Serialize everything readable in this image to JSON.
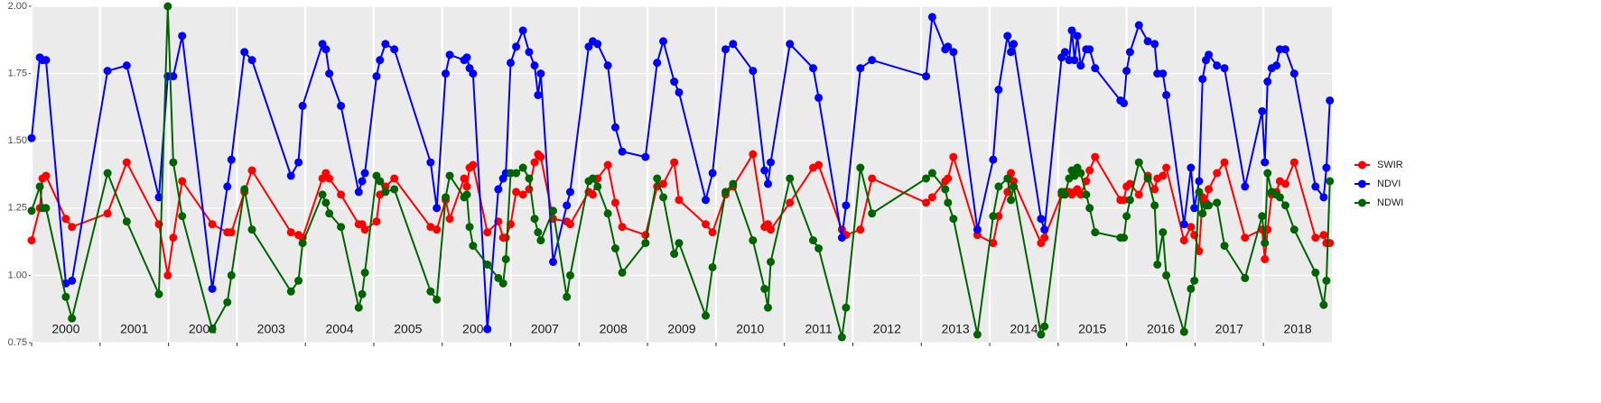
{
  "chart_data": {
    "type": "line",
    "x": [
      2000.0,
      2000.12,
      2000.16,
      2000.21,
      2000.5,
      2000.59,
      2001.11,
      2001.39,
      2001.86,
      2001.99,
      2002.07,
      2002.2,
      2002.64,
      2002.86,
      2002.92,
      2003.11,
      2003.22,
      2003.79,
      2003.9,
      2003.96,
      2004.25,
      2004.3,
      2004.35,
      2004.52,
      2004.78,
      2004.83,
      2004.87,
      2005.04,
      2005.09,
      2005.17,
      2005.3,
      2005.83,
      2005.92,
      2006.05,
      2006.11,
      2006.32,
      2006.36,
      2006.4,
      2006.45,
      2006.66,
      2006.82,
      2006.89,
      2006.93,
      2007.0,
      2007.08,
      2007.18,
      2007.27,
      2007.35,
      2007.4,
      2007.44,
      2007.62,
      2007.82,
      2007.87,
      2008.14,
      2008.2,
      2008.27,
      2008.42,
      2008.53,
      2008.63,
      2008.97,
      2009.14,
      2009.23,
      2009.39,
      2009.46,
      2009.85,
      2009.95,
      2010.14,
      2010.25,
      2010.54,
      2010.71,
      2010.76,
      2010.8,
      2011.08,
      2011.42,
      2011.5,
      2011.84,
      2011.9,
      2012.11,
      2012.28,
      2013.07,
      2013.16,
      2013.35,
      2013.39,
      2013.47,
      2013.82,
      2014.05,
      2014.13,
      2014.26,
      2014.31,
      2014.35,
      2014.75,
      2014.8,
      2015.05,
      2015.1,
      2015.16,
      2015.2,
      2015.24,
      2015.28,
      2015.33,
      2015.41,
      2015.46,
      2015.54,
      2015.91,
      2015.96,
      2016.0,
      2016.05,
      2016.18,
      2016.31,
      2016.41,
      2016.45,
      2016.53,
      2016.58,
      2016.84,
      2016.94,
      2016.99,
      2017.06,
      2017.11,
      2017.16,
      2017.2,
      2017.32,
      2017.43,
      2017.73,
      2017.98,
      2018.02,
      2018.06,
      2018.12,
      2018.19,
      2018.24,
      2018.32,
      2018.45,
      2018.76,
      2018.88,
      2018.92,
      2018.97
    ],
    "series": [
      {
        "name": "SWIR",
        "color": "#ff0000",
        "values": [
          1.13,
          1.25,
          1.36,
          1.37,
          1.21,
          1.18,
          1.23,
          1.42,
          1.19,
          1.0,
          1.14,
          1.35,
          1.19,
          1.16,
          1.16,
          1.31,
          1.39,
          1.16,
          1.15,
          1.14,
          1.36,
          1.38,
          1.36,
          1.3,
          1.19,
          1.19,
          1.17,
          1.2,
          1.3,
          1.33,
          1.36,
          1.18,
          1.17,
          1.28,
          1.21,
          1.36,
          1.33,
          1.4,
          1.41,
          1.16,
          1.2,
          1.14,
          1.14,
          1.19,
          1.31,
          1.3,
          1.32,
          1.42,
          1.45,
          1.44,
          1.21,
          1.2,
          1.19,
          1.31,
          1.3,
          1.36,
          1.41,
          1.27,
          1.18,
          1.15,
          1.33,
          1.34,
          1.42,
          1.28,
          1.19,
          1.16,
          1.3,
          1.33,
          1.45,
          1.18,
          1.19,
          1.17,
          1.27,
          1.4,
          1.41,
          1.17,
          1.15,
          1.17,
          1.36,
          1.27,
          1.29,
          1.35,
          1.36,
          1.44,
          1.15,
          1.12,
          1.22,
          1.31,
          1.38,
          1.35,
          1.12,
          1.14,
          1.3,
          1.31,
          1.31,
          1.3,
          1.31,
          1.32,
          1.3,
          1.35,
          1.39,
          1.44,
          1.28,
          1.28,
          1.33,
          1.34,
          1.3,
          1.37,
          1.32,
          1.36,
          1.37,
          1.4,
          1.13,
          1.18,
          1.15,
          1.09,
          1.29,
          1.27,
          1.32,
          1.38,
          1.42,
          1.14,
          1.17,
          1.06,
          1.17,
          1.3,
          1.31,
          1.35,
          1.34,
          1.42,
          1.14,
          1.15,
          1.12,
          1.12
        ]
      },
      {
        "name": "NDVI",
        "color": "#0000ff",
        "values": [
          1.51,
          1.81,
          1.8,
          1.8,
          0.97,
          0.98,
          1.76,
          1.78,
          1.29,
          1.74,
          1.74,
          1.89,
          0.95,
          1.33,
          1.43,
          1.83,
          1.8,
          1.37,
          1.42,
          1.63,
          1.86,
          1.84,
          1.75,
          1.63,
          1.31,
          1.35,
          1.38,
          1.74,
          1.8,
          1.86,
          1.84,
          1.42,
          1.25,
          1.75,
          1.82,
          1.8,
          1.81,
          1.77,
          1.75,
          0.8,
          1.32,
          1.36,
          1.38,
          1.79,
          1.85,
          1.91,
          1.83,
          1.78,
          1.67,
          1.75,
          1.05,
          1.26,
          1.31,
          1.85,
          1.87,
          1.86,
          1.78,
          1.55,
          1.46,
          1.44,
          1.79,
          1.87,
          1.72,
          1.68,
          1.28,
          1.38,
          1.84,
          1.86,
          1.76,
          1.39,
          1.34,
          1.42,
          1.86,
          1.77,
          1.66,
          1.14,
          1.26,
          1.77,
          1.8,
          1.74,
          1.96,
          1.84,
          1.85,
          1.83,
          1.17,
          1.43,
          1.69,
          1.89,
          1.83,
          1.86,
          1.21,
          1.17,
          1.81,
          1.83,
          1.8,
          1.91,
          1.8,
          1.89,
          1.78,
          1.84,
          1.84,
          1.77,
          1.65,
          1.64,
          1.76,
          1.83,
          1.93,
          1.87,
          1.86,
          1.75,
          1.75,
          1.67,
          1.19,
          1.4,
          1.25,
          1.35,
          1.73,
          1.8,
          1.82,
          1.78,
          1.77,
          1.33,
          1.61,
          1.42,
          1.72,
          1.77,
          1.78,
          1.84,
          1.84,
          1.75,
          1.33,
          1.29,
          1.4,
          1.65
        ]
      },
      {
        "name": "NDWI",
        "color": "#006400",
        "values": [
          1.24,
          1.33,
          1.25,
          1.25,
          0.92,
          0.84,
          1.38,
          1.2,
          0.93,
          2.0,
          1.42,
          1.22,
          0.8,
          0.9,
          1.0,
          1.32,
          1.17,
          0.94,
          0.98,
          1.12,
          1.3,
          1.27,
          1.23,
          1.18,
          0.88,
          0.93,
          1.01,
          1.37,
          1.35,
          1.31,
          1.32,
          0.94,
          0.91,
          1.29,
          1.37,
          1.29,
          1.3,
          1.18,
          1.11,
          1.04,
          0.99,
          0.97,
          1.06,
          1.38,
          1.38,
          1.4,
          1.36,
          1.21,
          1.16,
          1.13,
          1.24,
          0.92,
          1.0,
          1.35,
          1.36,
          1.33,
          1.23,
          1.1,
          1.01,
          1.12,
          1.36,
          1.29,
          1.08,
          1.12,
          0.85,
          1.03,
          1.31,
          1.34,
          1.13,
          0.95,
          0.88,
          1.05,
          1.36,
          1.13,
          1.1,
          0.77,
          0.88,
          1.4,
          1.23,
          1.36,
          1.38,
          1.32,
          1.27,
          1.21,
          0.78,
          1.22,
          1.33,
          1.36,
          1.28,
          1.33,
          0.78,
          0.81,
          1.31,
          1.3,
          1.36,
          1.39,
          1.37,
          1.4,
          1.38,
          1.3,
          1.25,
          1.16,
          1.14,
          1.14,
          1.22,
          1.28,
          1.42,
          1.36,
          1.26,
          1.04,
          1.16,
          1.0,
          0.79,
          0.95,
          0.98,
          1.31,
          1.23,
          1.26,
          1.26,
          1.27,
          1.11,
          0.99,
          1.22,
          1.12,
          1.38,
          1.31,
          1.3,
          1.29,
          1.26,
          1.17,
          1.01,
          0.89,
          0.98,
          1.35
        ]
      }
    ],
    "xlim": [
      2000,
      2019
    ],
    "xticks": [
      2000,
      2001,
      2002,
      2003,
      2004,
      2005,
      2006,
      2007,
      2008,
      2009,
      2010,
      2011,
      2012,
      2013,
      2014,
      2015,
      2016,
      2017,
      2018
    ],
    "ylim": [
      0.75,
      2.0
    ],
    "yticks": [
      {
        "value": 0.75,
        "label": "0.75"
      },
      {
        "value": 1.0,
        "label": "1.00"
      },
      {
        "value": 1.25,
        "label": "1.25"
      },
      {
        "value": 1.5,
        "label": "1.50"
      },
      {
        "value": 1.75,
        "label": "1.75"
      },
      {
        "value": 2.0,
        "label": "2.00"
      }
    ],
    "grid": true,
    "legend": "right"
  }
}
